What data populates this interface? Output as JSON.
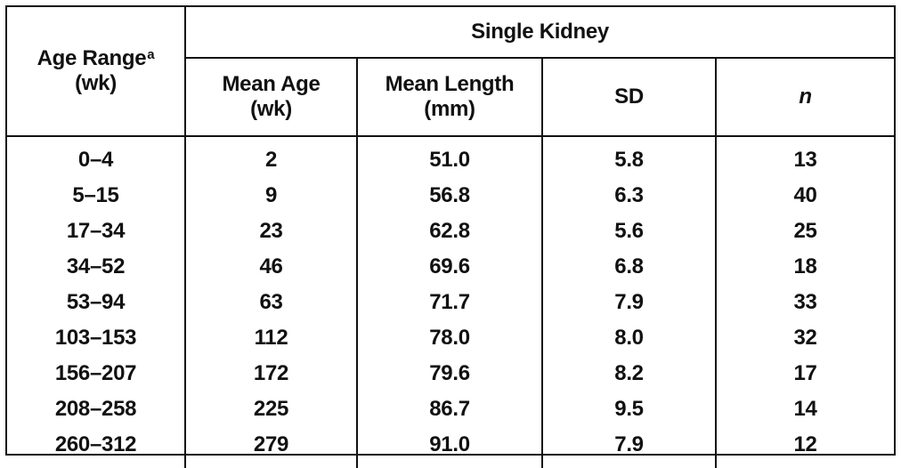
{
  "table": {
    "group_header": "Single Kidney",
    "age_range_header": {
      "line1": "Age Range",
      "footnote_mark": "a",
      "line2": "(wk)"
    },
    "columns": [
      {
        "line1": "Mean Age",
        "line2": "(wk)"
      },
      {
        "line1": "Mean Length",
        "line2": "(mm)"
      },
      {
        "line1": "SD",
        "line2": ""
      },
      {
        "line1": "n",
        "line2": ""
      }
    ],
    "rows": [
      {
        "age_range": "0–4",
        "mean_age": "2",
        "mean_length": "51.0",
        "sd": "5.8",
        "n": "13"
      },
      {
        "age_range": "5–15",
        "mean_age": "9",
        "mean_length": "56.8",
        "sd": "6.3",
        "n": "40"
      },
      {
        "age_range": "17–34",
        "mean_age": "23",
        "mean_length": "62.8",
        "sd": "5.6",
        "n": "25"
      },
      {
        "age_range": "34–52",
        "mean_age": "46",
        "mean_length": "69.6",
        "sd": "6.8",
        "n": "18"
      },
      {
        "age_range": "53–94",
        "mean_age": "63",
        "mean_length": "71.7",
        "sd": "7.9",
        "n": "33"
      },
      {
        "age_range": "103–153",
        "mean_age": "112",
        "mean_length": "78.0",
        "sd": "8.0",
        "n": "32"
      },
      {
        "age_range": "156–207",
        "mean_age": "172",
        "mean_length": "79.6",
        "sd": "8.2",
        "n": "17"
      },
      {
        "age_range": "208–258",
        "mean_age": "225",
        "mean_length": "86.7",
        "sd": "9.5",
        "n": "14"
      },
      {
        "age_range": "260–312",
        "mean_age": "279",
        "mean_length": "91.0",
        "sd": "7.9",
        "n": "12"
      }
    ]
  }
}
